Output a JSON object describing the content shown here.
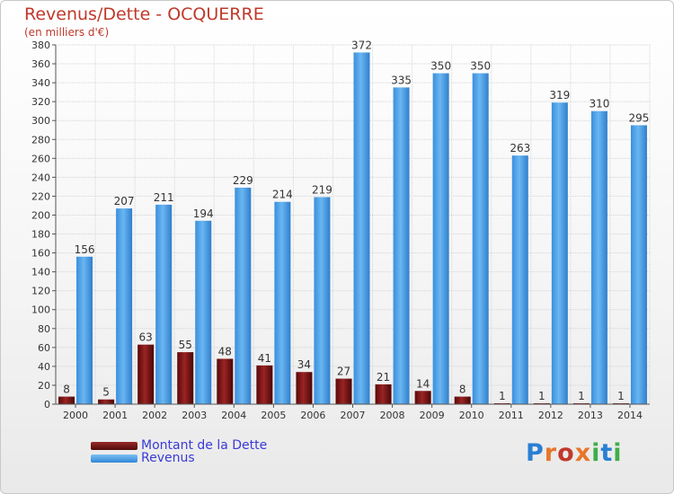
{
  "title": "Revenus/Dette - OCQUERRE",
  "subtitle": "(en milliers d'€)",
  "logo_text": "Proxiti",
  "chart_data": {
    "type": "bar",
    "categories": [
      "2000",
      "2001",
      "2002",
      "2003",
      "2004",
      "2005",
      "2006",
      "2007",
      "2008",
      "2009",
      "2010",
      "2011",
      "2012",
      "2013",
      "2014"
    ],
    "series": [
      {
        "name": "Montant de la Dette",
        "color": "#7a1212",
        "values": [
          8,
          5,
          63,
          55,
          48,
          41,
          34,
          27,
          21,
          14,
          8,
          1,
          1,
          1,
          1
        ]
      },
      {
        "name": "Revenus",
        "color": "#4a9fe6",
        "values": [
          156,
          207,
          211,
          194,
          229,
          214,
          219,
          372,
          335,
          350,
          350,
          263,
          319,
          310,
          295
        ]
      }
    ],
    "yticks": [
      0,
      20,
      40,
      60,
      80,
      100,
      120,
      140,
      160,
      180,
      200,
      220,
      240,
      260,
      280,
      300,
      320,
      340,
      360,
      380
    ],
    "ylim": [
      0,
      380
    ],
    "grid": true,
    "legend_position": "bottom-left"
  }
}
